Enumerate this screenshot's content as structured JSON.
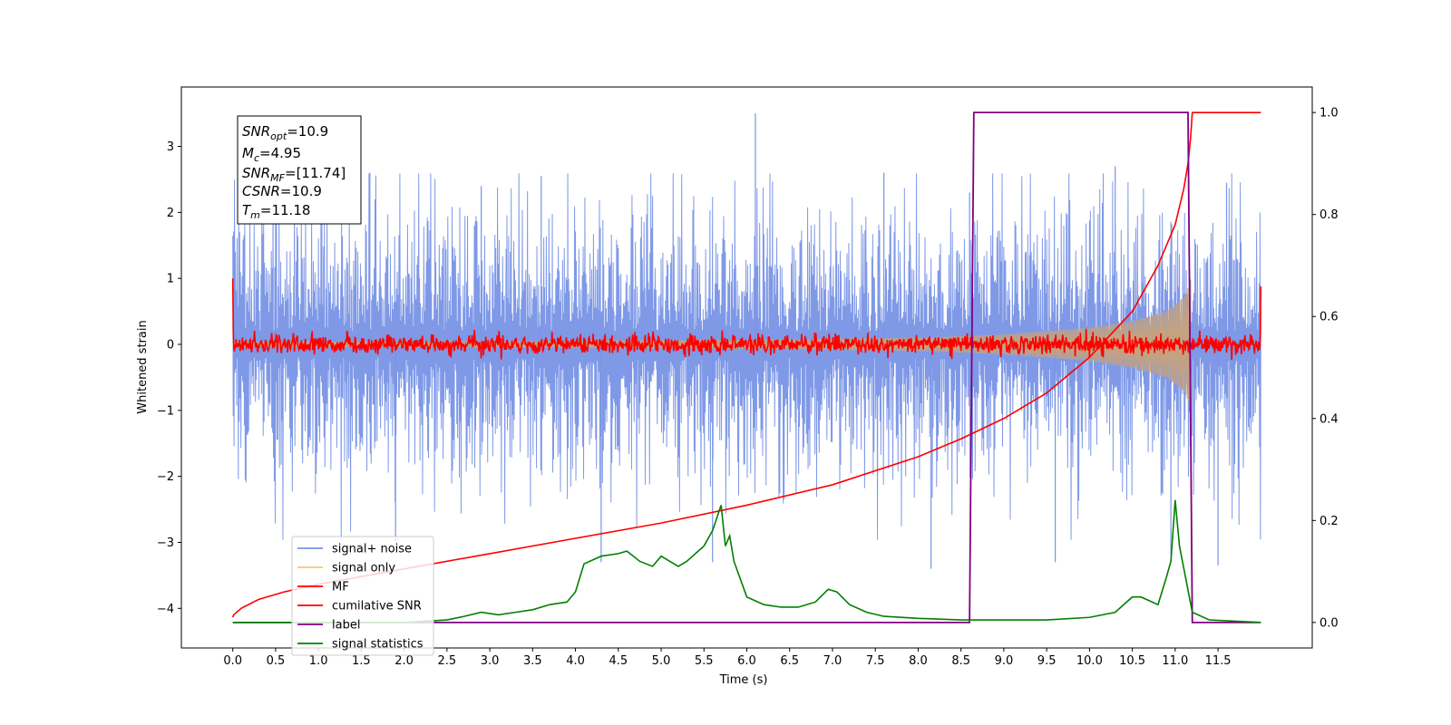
{
  "chart_data": {
    "type": "line",
    "xlabel": "Time (s)",
    "ylabel": "Whitened strain",
    "xlim": [
      -0.6,
      12.6
    ],
    "ylim": [
      -4.6,
      3.9
    ],
    "y2lim": [
      -0.05,
      1.05
    ],
    "x_ticks": [
      "0.0",
      "0.5",
      "1.0",
      "1.5",
      "2.0",
      "2.5",
      "3.0",
      "3.5",
      "4.0",
      "4.5",
      "5.0",
      "5.5",
      "6.0",
      "6.5",
      "7.0",
      "7.5",
      "8.0",
      "8.5",
      "9.0",
      "9.5",
      "10.0",
      "10.5",
      "11.0",
      "11.5"
    ],
    "y_ticks": [
      "3",
      "2",
      "1",
      "0",
      "−1",
      "−2",
      "−3",
      "−4"
    ],
    "y2_ticks": [
      "1.0",
      "0.8",
      "0.6",
      "0.4",
      "0.2",
      "0.0"
    ],
    "info_box": {
      "snr_opt": {
        "base": "SNR",
        "sub": "opt",
        "value": "=10.9"
      },
      "mc": {
        "base": "M",
        "sub": "c",
        "value": "=4.95"
      },
      "snr_mf": {
        "base": "SNR",
        "sub": "MF",
        "value": "=[11.74]"
      },
      "csnr": {
        "base": "CSNR",
        "sub": "",
        "value": "=10.9"
      },
      "tm": {
        "base": "T",
        "sub": "m",
        "value": "=11.18"
      }
    },
    "legend": [
      {
        "name": "signal+ noise",
        "color": "#7894e6"
      },
      {
        "name": "signal only",
        "color": "#f5c97a"
      },
      {
        "name": "MF",
        "color": "#ff0000"
      },
      {
        "name": "cumilative SNR",
        "color": "#ff0000"
      },
      {
        "name": "label",
        "color": "#800080"
      },
      {
        "name": "signal statistics",
        "color": "#008000"
      }
    ],
    "series": [
      {
        "name": "signal+ noise",
        "axis": "left",
        "style": "noise",
        "x_range": [
          0.0,
          12.0
        ],
        "envelope_typical": 1.85,
        "peaks": [
          [
            0.5,
            2.3
          ],
          [
            1.6,
            2.6
          ],
          [
            2.9,
            2.4
          ],
          [
            3.6,
            2.55
          ],
          [
            6.1,
            3.5
          ],
          [
            7.6,
            2.6
          ],
          [
            8.6,
            2.3
          ],
          [
            10.3,
            2.7
          ],
          [
            11.6,
            2.45
          ],
          [
            1.9,
            -3.0
          ],
          [
            4.3,
            -3.3
          ],
          [
            5.6,
            -3.3
          ],
          [
            8.15,
            -3.4
          ],
          [
            9.6,
            -3.3
          ],
          [
            10.95,
            -3.2
          ],
          [
            11.5,
            -3.35
          ]
        ]
      },
      {
        "name": "signal only",
        "axis": "left",
        "style": "chirp",
        "x_range": [
          0.0,
          11.18
        ],
        "amplitude_points": [
          [
            0.0,
            0.04
          ],
          [
            3.0,
            0.05
          ],
          [
            6.0,
            0.07
          ],
          [
            8.0,
            0.1
          ],
          [
            9.0,
            0.15
          ],
          [
            10.0,
            0.25
          ],
          [
            10.5,
            0.35
          ],
          [
            10.9,
            0.5
          ],
          [
            11.1,
            0.7
          ],
          [
            11.18,
            0.95
          ]
        ]
      },
      {
        "name": "MF",
        "axis": "left",
        "style": "noise",
        "x_range": [
          0.0,
          12.0
        ],
        "start_value": 1.0,
        "end_value": 0.88,
        "amplitude": 0.1
      },
      {
        "name": "cumilative SNR",
        "axis": "right",
        "x": [
          0.0,
          0.01,
          0.1,
          0.3,
          0.6,
          1.0,
          1.5,
          2.0,
          3.0,
          4.0,
          5.0,
          6.0,
          7.0,
          8.0,
          8.5,
          9.0,
          9.5,
          10.0,
          10.5,
          10.8,
          11.0,
          11.1,
          11.15,
          11.18,
          11.2,
          12.0
        ],
        "y": [
          0.01,
          0.015,
          0.028,
          0.045,
          0.06,
          0.075,
          0.09,
          0.105,
          0.135,
          0.165,
          0.195,
          0.23,
          0.27,
          0.325,
          0.36,
          0.4,
          0.45,
          0.52,
          0.61,
          0.7,
          0.78,
          0.85,
          0.9,
          0.95,
          1.0,
          1.0
        ]
      },
      {
        "name": "label",
        "axis": "right",
        "x": [
          0.0,
          8.6,
          8.65,
          11.15,
          11.2,
          12.0
        ],
        "y": [
          0.0,
          0.0,
          1.0,
          1.0,
          0.0,
          0.0
        ]
      },
      {
        "name": "signal statistics",
        "axis": "right",
        "x": [
          0.0,
          0.5,
          1.0,
          1.5,
          2.0,
          2.5,
          2.7,
          2.9,
          3.1,
          3.3,
          3.5,
          3.7,
          3.9,
          4.0,
          4.1,
          4.3,
          4.5,
          4.6,
          4.75,
          4.9,
          5.0,
          5.2,
          5.3,
          5.5,
          5.6,
          5.7,
          5.75,
          5.8,
          5.85,
          6.0,
          6.2,
          6.4,
          6.6,
          6.8,
          6.95,
          7.05,
          7.2,
          7.4,
          7.6,
          8.0,
          8.5,
          9.0,
          9.5,
          10.0,
          10.3,
          10.5,
          10.6,
          10.8,
          10.9,
          10.95,
          11.0,
          11.05,
          11.2,
          11.4,
          12.0
        ],
        "y": [
          0.0,
          0.0,
          0.0,
          0.0,
          0.0,
          0.005,
          0.012,
          0.02,
          0.015,
          0.02,
          0.025,
          0.035,
          0.04,
          0.06,
          0.115,
          0.13,
          0.135,
          0.14,
          0.12,
          0.11,
          0.13,
          0.11,
          0.12,
          0.15,
          0.18,
          0.23,
          0.15,
          0.17,
          0.12,
          0.05,
          0.035,
          0.03,
          0.03,
          0.04,
          0.065,
          0.06,
          0.035,
          0.02,
          0.012,
          0.008,
          0.005,
          0.005,
          0.005,
          0.01,
          0.02,
          0.05,
          0.05,
          0.035,
          0.09,
          0.12,
          0.24,
          0.15,
          0.02,
          0.005,
          0.0
        ]
      }
    ]
  }
}
